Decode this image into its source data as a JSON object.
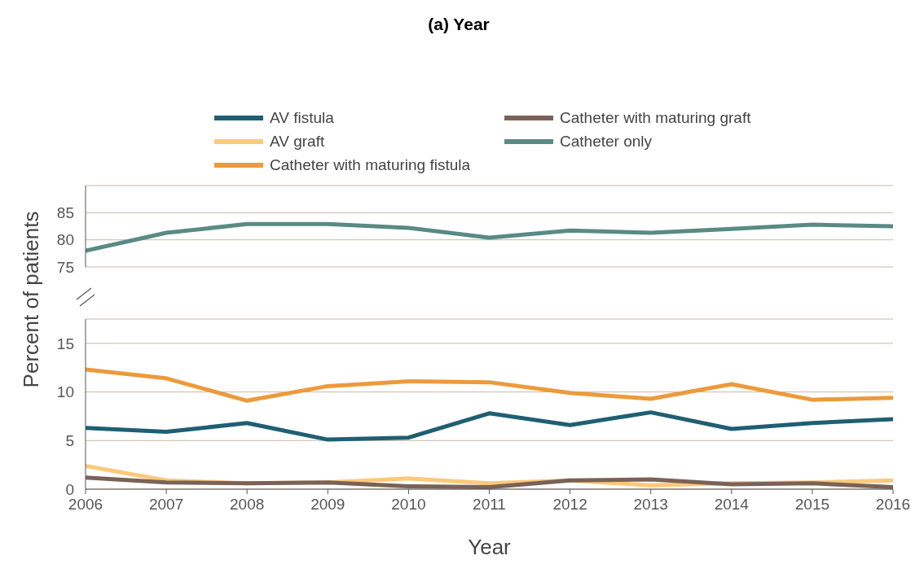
{
  "chart_data": [
    {
      "type": "line",
      "title": "(a) Year",
      "x": [
        2006,
        2007,
        2008,
        2009,
        2010,
        2011,
        2012,
        2013,
        2014,
        2015,
        2016
      ],
      "xlim": [
        2006,
        2016
      ],
      "ylim": [
        75,
        90
      ],
      "yticks": [
        75,
        80,
        85
      ],
      "tick_labels": "y",
      "grid": "y",
      "legend": "top",
      "series": [
        {
          "name": "Catheter only",
          "color": "#5a8a84",
          "values": [
            78.0,
            81.3,
            82.9,
            82.9,
            82.2,
            80.4,
            81.7,
            81.3,
            82.0,
            82.8,
            82.5
          ]
        }
      ]
    },
    {
      "type": "line",
      "x": [
        2006,
        2007,
        2008,
        2009,
        2010,
        2011,
        2012,
        2013,
        2014,
        2015,
        2016
      ],
      "xlim": [
        2006,
        2016
      ],
      "xticks": [
        2006,
        2007,
        2008,
        2009,
        2010,
        2011,
        2012,
        2013,
        2014,
        2015,
        2016
      ],
      "ylim": [
        0,
        17.5
      ],
      "yticks": [
        0,
        5,
        10,
        15
      ],
      "xlabel": "Year",
      "ylabel": "Percent of patients",
      "grid": "y",
      "legend": "top",
      "series": [
        {
          "name": "AV fistula",
          "color": "#1f5f73",
          "values": [
            6.3,
            5.9,
            6.8,
            5.1,
            5.3,
            7.8,
            6.6,
            7.9,
            6.2,
            6.8,
            7.2
          ]
        },
        {
          "name": "AV graft",
          "color": "#fbc97a",
          "values": [
            2.4,
            0.9,
            0.6,
            0.7,
            1.1,
            0.6,
            0.9,
            0.4,
            0.6,
            0.7,
            0.9
          ]
        },
        {
          "name": "Catheter with maturing fistula",
          "color": "#ec9a3c",
          "values": [
            12.3,
            11.4,
            9.1,
            10.6,
            11.1,
            11.0,
            9.9,
            9.3,
            10.8,
            9.2,
            9.4
          ]
        },
        {
          "name": "Catheter with maturing graft",
          "color": "#7a6256",
          "values": [
            1.2,
            0.7,
            0.6,
            0.7,
            0.3,
            0.2,
            0.9,
            1.0,
            0.5,
            0.6,
            0.2
          ]
        }
      ]
    }
  ]
}
